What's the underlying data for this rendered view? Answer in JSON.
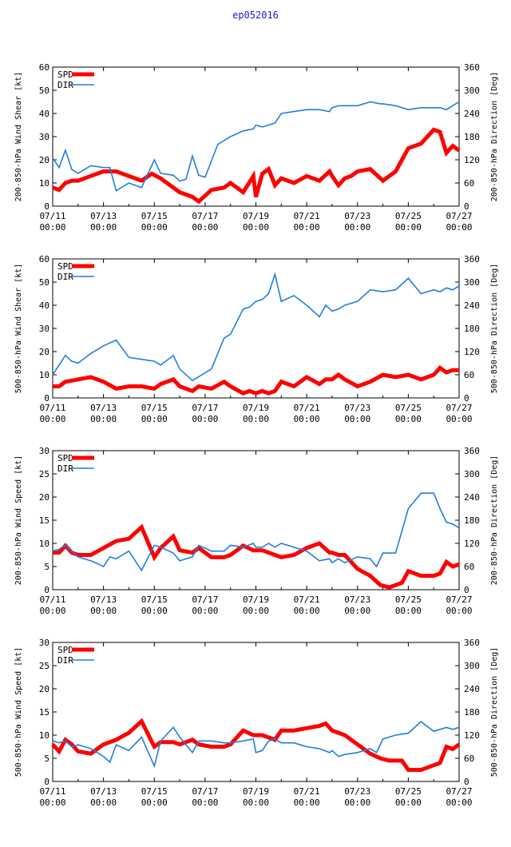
{
  "title": "ep052016",
  "colors": {
    "spd": "#ff0000",
    "dir": "#1f7fe0",
    "axis": "#000000"
  },
  "legend": {
    "spd": "SPD",
    "dir": "DIR"
  },
  "x_tick_labels": [
    [
      "07/11",
      "00:00"
    ],
    [
      "07/13",
      "00:00"
    ],
    [
      "07/15",
      "00:00"
    ],
    [
      "07/17",
      "00:00"
    ],
    [
      "07/19",
      "00:00"
    ],
    [
      "07/21",
      "00:00"
    ],
    [
      "07/23",
      "00:00"
    ],
    [
      "07/25",
      "00:00"
    ],
    [
      "07/27",
      "00:00"
    ]
  ],
  "chart_data": [
    {
      "type": "line",
      "ylabel_left": "200-850-hPa Wind Shear [kt]",
      "ylabel_right": "200-850-hPa Direction [Deg]",
      "xlim_days": [
        0,
        16
      ],
      "ylim_left": [
        0,
        60
      ],
      "ylim_right": [
        0,
        360
      ],
      "yticks_left": [
        0,
        10,
        20,
        30,
        40,
        50,
        60
      ],
      "yticks_right": [
        0,
        60,
        120,
        180,
        240,
        300,
        360
      ],
      "legend_position": "top-left",
      "series": [
        {
          "name": "SPD",
          "axis": "left",
          "x": [
            0.0,
            0.25,
            0.5,
            0.75,
            1.0,
            1.5,
            2.0,
            2.5,
            3.0,
            3.5,
            3.9,
            4.25,
            4.75,
            5.0,
            5.5,
            5.75,
            6.25,
            6.75,
            7.0,
            7.5,
            7.9,
            8.0,
            8.25,
            8.5,
            8.75,
            9.0,
            9.5,
            10.0,
            10.5,
            10.9,
            11.0,
            11.25,
            11.5,
            11.75,
            12.0,
            12.5,
            12.9,
            13.0,
            13.5,
            14.0,
            14.5,
            15.0,
            15.25,
            15.5,
            15.75,
            16.0
          ],
          "values": [
            8,
            7,
            10,
            11,
            11,
            13,
            15,
            15,
            13,
            11,
            14,
            12,
            8,
            6,
            4,
            2,
            7,
            8,
            10,
            6,
            13,
            4,
            14,
            16,
            9,
            12,
            10,
            13,
            11,
            15,
            13,
            9,
            12,
            13,
            15,
            16,
            12,
            11,
            15,
            25,
            27,
            33,
            32,
            23,
            26,
            24
          ]
        },
        {
          "name": "DIR",
          "axis": "right",
          "x": [
            0.0,
            0.25,
            0.5,
            0.75,
            1.0,
            1.5,
            2.0,
            2.25,
            2.5,
            3.0,
            3.5,
            4.0,
            4.25,
            4.75,
            5.0,
            5.25,
            5.5,
            5.75,
            6.0,
            6.5,
            7.0,
            7.5,
            7.9,
            8.0,
            8.25,
            8.5,
            8.75,
            9.0,
            9.5,
            10.0,
            10.5,
            10.9,
            11.0,
            11.25,
            11.5,
            12.0,
            12.5,
            12.9,
            13.0,
            13.5,
            14.0,
            14.5,
            15.0,
            15.25,
            15.5,
            15.75,
            16.0
          ],
          "values": [
            125,
            100,
            145,
            95,
            85,
            105,
            100,
            100,
            40,
            60,
            48,
            120,
            85,
            80,
            65,
            70,
            130,
            80,
            75,
            160,
            180,
            195,
            200,
            210,
            205,
            210,
            215,
            240,
            245,
            250,
            250,
            245,
            255,
            260,
            260,
            260,
            270,
            265,
            265,
            260,
            250,
            255,
            255,
            255,
            250,
            260,
            270
          ]
        }
      ]
    },
    {
      "type": "line",
      "ylabel_left": "500-850-hPa Wind Shear [kt]",
      "ylabel_right": "500-850-hPa Direction [Deg]",
      "xlim_days": [
        0,
        16
      ],
      "ylim_left": [
        0,
        60
      ],
      "ylim_right": [
        0,
        360
      ],
      "yticks_left": [
        0,
        10,
        20,
        30,
        40,
        50,
        60
      ],
      "yticks_right": [
        0,
        60,
        120,
        180,
        240,
        300,
        360
      ],
      "legend_position": "top-left",
      "series": [
        {
          "name": "SPD",
          "axis": "left",
          "x": [
            0.0,
            0.25,
            0.5,
            0.75,
            1.0,
            1.5,
            2.0,
            2.5,
            3.0,
            3.5,
            4.0,
            4.25,
            4.75,
            5.0,
            5.5,
            5.75,
            6.25,
            6.75,
            7.0,
            7.5,
            7.75,
            8.0,
            8.25,
            8.5,
            8.75,
            9.0,
            9.5,
            10.0,
            10.5,
            10.75,
            11.0,
            11.25,
            11.5,
            12.0,
            12.5,
            13.0,
            13.5,
            14.0,
            14.5,
            15.0,
            15.25,
            15.5,
            15.75,
            16.0
          ],
          "values": [
            5,
            5,
            7,
            7.5,
            8,
            9,
            7,
            4,
            5,
            5,
            4,
            6,
            8,
            5,
            3,
            5,
            4,
            7,
            5,
            2,
            3,
            2,
            3,
            2,
            3,
            7,
            5,
            9,
            6,
            8,
            8,
            10,
            8,
            5,
            7,
            10,
            9,
            10,
            8,
            10,
            13,
            11,
            12,
            12
          ]
        },
        {
          "name": "DIR",
          "axis": "right",
          "x": [
            0.0,
            0.25,
            0.5,
            0.75,
            1.0,
            1.5,
            2.0,
            2.5,
            3.0,
            3.5,
            4.0,
            4.25,
            4.75,
            5.0,
            5.5,
            5.75,
            6.25,
            6.75,
            7.0,
            7.5,
            7.75,
            8.0,
            8.25,
            8.5,
            8.75,
            9.0,
            9.5,
            10.0,
            10.5,
            10.75,
            11.0,
            11.25,
            11.5,
            12.0,
            12.5,
            13.0,
            13.5,
            14.0,
            14.5,
            15.0,
            15.25,
            15.5,
            15.75,
            16.0
          ],
          "values": [
            60,
            85,
            110,
            95,
            90,
            115,
            135,
            150,
            105,
            100,
            95,
            85,
            110,
            75,
            45,
            55,
            75,
            155,
            165,
            230,
            235,
            250,
            255,
            270,
            320,
            250,
            265,
            240,
            210,
            240,
            225,
            230,
            240,
            250,
            280,
            275,
            280,
            310,
            270,
            280,
            275,
            285,
            280,
            290
          ]
        }
      ]
    },
    {
      "type": "line",
      "ylabel_left": "200-850-hPa Wind Speed [kt]",
      "ylabel_right": "200-850-hPa Direction [Deg]",
      "xlim_days": [
        0,
        16
      ],
      "ylim_left": [
        0,
        30
      ],
      "ylim_right": [
        0,
        360
      ],
      "yticks_left": [
        0,
        5,
        10,
        15,
        20,
        25,
        30
      ],
      "yticks_right": [
        0,
        60,
        120,
        180,
        240,
        300,
        360
      ],
      "legend_position": "top-left",
      "series": [
        {
          "name": "SPD",
          "axis": "left",
          "x": [
            0.0,
            0.25,
            0.5,
            0.75,
            1.0,
            1.5,
            2.0,
            2.5,
            3.0,
            3.5,
            4.0,
            4.25,
            4.75,
            5.0,
            5.5,
            5.75,
            6.25,
            6.75,
            7.0,
            7.5,
            7.9,
            8.25,
            8.75,
            9.0,
            9.5,
            10.0,
            10.5,
            10.9,
            11.0,
            11.25,
            11.5,
            12.0,
            12.5,
            12.9,
            13.25,
            13.75,
            14.0,
            14.5,
            15.0,
            15.25,
            15.5,
            15.75,
            16.0
          ],
          "values": [
            8,
            8,
            9.5,
            8,
            7.5,
            7.5,
            9,
            10.5,
            11,
            13.5,
            7,
            9,
            11.5,
            8.5,
            8,
            9,
            7,
            7,
            7.5,
            9.5,
            8.5,
            8.5,
            7.5,
            7,
            7.5,
            9,
            10,
            8,
            8,
            7.5,
            7.5,
            4.5,
            3,
            1,
            0.5,
            1.5,
            4,
            3,
            3,
            3.5,
            6,
            5,
            5.5
          ]
        },
        {
          "name": "DIR",
          "axis": "right",
          "x": [
            0.0,
            0.25,
            0.5,
            0.75,
            1.0,
            1.5,
            2.0,
            2.25,
            2.5,
            3.0,
            3.5,
            4.0,
            4.25,
            4.75,
            5.0,
            5.5,
            5.75,
            6.25,
            6.75,
            7.0,
            7.5,
            7.9,
            8.0,
            8.25,
            8.5,
            8.75,
            9.0,
            9.5,
            10.0,
            10.5,
            10.9,
            11.0,
            11.25,
            11.5,
            12.0,
            12.5,
            12.75,
            13.0,
            13.5,
            14.0,
            14.5,
            15.0,
            15.25,
            15.5,
            15.75,
            16.0
          ],
          "values": [
            100,
            105,
            115,
            100,
            85,
            75,
            60,
            85,
            80,
            100,
            50,
            115,
            110,
            95,
            75,
            85,
            115,
            100,
            100,
            115,
            110,
            120,
            110,
            110,
            120,
            110,
            120,
            110,
            100,
            75,
            80,
            70,
            80,
            70,
            85,
            80,
            60,
            95,
            95,
            210,
            250,
            250,
            210,
            175,
            170,
            160
          ]
        }
      ]
    },
    {
      "type": "line",
      "ylabel_left": "500-850-hPa Wind Speed [kt]",
      "ylabel_right": "500-850-hPa Direction [Deg]",
      "xlim_days": [
        0,
        16
      ],
      "ylim_left": [
        0,
        30
      ],
      "ylim_right": [
        0,
        360
      ],
      "yticks_left": [
        0,
        5,
        10,
        15,
        20,
        25,
        30
      ],
      "yticks_right": [
        0,
        60,
        120,
        180,
        240,
        300,
        360
      ],
      "legend_position": "top-left",
      "series": [
        {
          "name": "SPD",
          "axis": "left",
          "x": [
            0.0,
            0.25,
            0.5,
            0.75,
            1.0,
            1.5,
            2.0,
            2.5,
            3.0,
            3.5,
            4.0,
            4.25,
            4.75,
            5.0,
            5.5,
            5.75,
            6.25,
            6.75,
            7.0,
            7.5,
            7.9,
            8.25,
            8.75,
            9.0,
            9.5,
            10.0,
            10.5,
            10.75,
            11.0,
            11.25,
            11.5,
            12.0,
            12.5,
            12.9,
            13.25,
            13.75,
            14.0,
            14.5,
            15.0,
            15.25,
            15.5,
            15.75,
            16.0
          ],
          "values": [
            8,
            6.5,
            9,
            8,
            6.5,
            6,
            8,
            9,
            10.5,
            13,
            7.5,
            8.5,
            8.5,
            8,
            9,
            8,
            7.5,
            7.5,
            8,
            11,
            10,
            10,
            9,
            11,
            11,
            11.5,
            12,
            12.5,
            11,
            10.5,
            10,
            8,
            6,
            5,
            4.5,
            4.5,
            2.5,
            2.5,
            3.5,
            4,
            7.5,
            7,
            8
          ]
        },
        {
          "name": "DIR",
          "axis": "right",
          "x": [
            0.0,
            0.25,
            0.5,
            0.75,
            1.0,
            1.5,
            2.0,
            2.25,
            2.5,
            3.0,
            3.5,
            4.0,
            4.25,
            4.75,
            5.0,
            5.5,
            5.75,
            6.25,
            6.75,
            7.0,
            7.5,
            7.9,
            8.0,
            8.25,
            8.5,
            8.75,
            9.0,
            9.5,
            10.0,
            10.5,
            10.9,
            11.0,
            11.25,
            11.5,
            12.0,
            12.5,
            12.75,
            13.0,
            13.5,
            14.0,
            14.5,
            15.0,
            15.25,
            15.5,
            15.75,
            16.0
          ],
          "values": [
            105,
            100,
            105,
            90,
            95,
            85,
            65,
            50,
            95,
            80,
            115,
            40,
            105,
            140,
            115,
            75,
            105,
            105,
            100,
            100,
            105,
            110,
            75,
            80,
            105,
            110,
            100,
            100,
            90,
            85,
            75,
            80,
            65,
            70,
            75,
            85,
            75,
            110,
            120,
            125,
            155,
            130,
            135,
            140,
            135,
            140
          ]
        }
      ]
    }
  ]
}
